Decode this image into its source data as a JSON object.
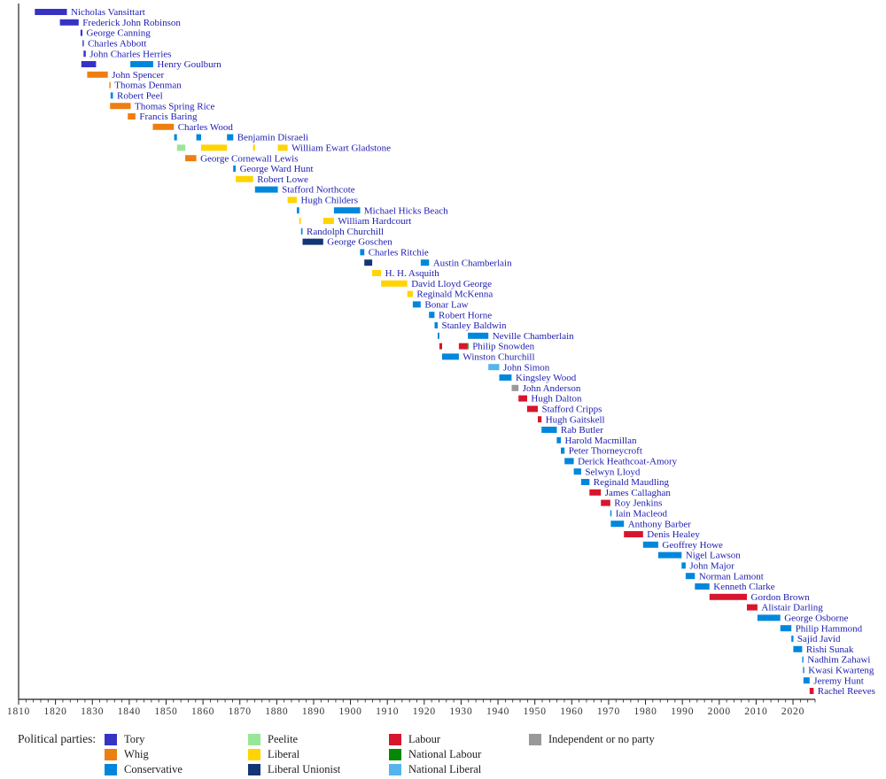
{
  "chart_data": {
    "type": "bar",
    "variant": "gantt-timeline",
    "title": "",
    "xlabel": "",
    "ylabel": "",
    "grid": false,
    "x_axis": {
      "min": 1810,
      "max": 2026,
      "major_tick_interval": 10,
      "minor_tick_interval": 2,
      "tick_labels": [
        "1810",
        "1820",
        "1830",
        "1840",
        "1850",
        "1860",
        "1870",
        "1880",
        "1890",
        "1900",
        "1910",
        "1920",
        "1930",
        "1940",
        "1950",
        "1960",
        "1970",
        "1980",
        "1990",
        "2000",
        "2010",
        "2020"
      ]
    },
    "label_color": "#1c1cb0",
    "axis_color": "#222222",
    "tick_label_color": "#333333",
    "parties": {
      "Tory": "#3732C4",
      "Whig": "#EE7E11",
      "Conservative": "#0087DC",
      "Peelite": "#98E698",
      "Liberal": "#FFD400",
      "Liberal Unionist": "#133577",
      "Labour": "#D8152F",
      "National Labour": "#058805",
      "National Liberal": "#55B4EE",
      "Independent or no party": "#999999"
    },
    "legend": {
      "title": "Political parties:",
      "position": "bottom",
      "items": [
        {
          "label": "Tory",
          "color": "#3732C4"
        },
        {
          "label": "Whig",
          "color": "#EE7E11"
        },
        {
          "label": "Conservative",
          "color": "#0087DC"
        },
        {
          "label": "Peelite",
          "color": "#98E698"
        },
        {
          "label": "Liberal",
          "color": "#FFD400"
        },
        {
          "label": "Liberal Unionist",
          "color": "#133577"
        },
        {
          "label": "Labour",
          "color": "#D8152F"
        },
        {
          "label": "National Labour",
          "color": "#058805"
        },
        {
          "label": "National Liberal",
          "color": "#55B4EE"
        },
        {
          "label": "Independent or no party",
          "color": "#999999"
        }
      ]
    },
    "rows": [
      {
        "name": "Nicholas Vansittart",
        "terms": [
          {
            "party": "Tory",
            "start": 1814.4,
            "end": 1823.1
          }
        ]
      },
      {
        "name": "Frederick John Robinson",
        "terms": [
          {
            "party": "Tory",
            "start": 1821.2,
            "end": 1826.3
          }
        ]
      },
      {
        "name": "George Canning",
        "terms": [
          {
            "party": "Tory",
            "start": 1826.8,
            "end": 1827.3
          }
        ]
      },
      {
        "name": "Charles Abbott",
        "terms": [
          {
            "party": "Tory",
            "start": 1827.35,
            "end": 1827.5
          }
        ]
      },
      {
        "name": "John Charles Herries",
        "terms": [
          {
            "party": "Tory",
            "start": 1827.6,
            "end": 1828.2
          }
        ]
      },
      {
        "name": "Henry Goulburn",
        "terms": [
          {
            "party": "Tory",
            "start": 1827.0,
            "end": 1831.0
          },
          {
            "party": "Conservative",
            "start": 1840.3,
            "end": 1846.5
          }
        ]
      },
      {
        "name": "John Spencer",
        "terms": [
          {
            "party": "Whig",
            "start": 1828.6,
            "end": 1834.2
          }
        ]
      },
      {
        "name": "Thomas Denman",
        "terms": [
          {
            "party": "Whig",
            "start": 1834.6,
            "end": 1834.85
          }
        ]
      },
      {
        "name": "Robert Peel",
        "terms": [
          {
            "party": "Conservative",
            "start": 1834.95,
            "end": 1835.6
          }
        ]
      },
      {
        "name": "Thomas Spring Rice",
        "terms": [
          {
            "party": "Whig",
            "start": 1834.8,
            "end": 1840.4
          }
        ]
      },
      {
        "name": "Francis Baring",
        "terms": [
          {
            "party": "Whig",
            "start": 1839.6,
            "end": 1841.7
          }
        ]
      },
      {
        "name": "Charles Wood",
        "terms": [
          {
            "party": "Whig",
            "start": 1846.4,
            "end": 1852.1
          }
        ]
      },
      {
        "name": "Benjamin Disraeli",
        "terms": [
          {
            "party": "Conservative",
            "start": 1852.2,
            "end": 1852.95
          },
          {
            "party": "Conservative",
            "start": 1858.2,
            "end": 1859.5
          },
          {
            "party": "Conservative",
            "start": 1866.5,
            "end": 1868.2
          }
        ]
      },
      {
        "name": "William Ewart Gladstone",
        "terms": [
          {
            "party": "Peelite",
            "start": 1852.95,
            "end": 1855.2
          },
          {
            "party": "Liberal",
            "start": 1859.5,
            "end": 1866.5
          },
          {
            "party": "Liberal",
            "start": 1873.6,
            "end": 1874.1
          },
          {
            "party": "Liberal",
            "start": 1880.3,
            "end": 1882.95
          }
        ]
      },
      {
        "name": "George Cornewall Lewis",
        "terms": [
          {
            "party": "Whig",
            "start": 1855.2,
            "end": 1858.2
          }
        ]
      },
      {
        "name": "George Ward Hunt",
        "terms": [
          {
            "party": "Conservative",
            "start": 1868.2,
            "end": 1868.9
          }
        ]
      },
      {
        "name": "Robert Lowe",
        "terms": [
          {
            "party": "Liberal",
            "start": 1868.9,
            "end": 1873.6
          }
        ]
      },
      {
        "name": "Stafford Northcote",
        "terms": [
          {
            "party": "Conservative",
            "start": 1874.1,
            "end": 1880.3
          }
        ]
      },
      {
        "name": "Hugh Childers",
        "terms": [
          {
            "party": "Liberal",
            "start": 1882.95,
            "end": 1885.45
          }
        ]
      },
      {
        "name": "Michael Hicks Beach",
        "terms": [
          {
            "party": "Conservative",
            "start": 1885.45,
            "end": 1886.1
          },
          {
            "party": "Conservative",
            "start": 1895.5,
            "end": 1902.6
          }
        ]
      },
      {
        "name": "William Hardcourt",
        "terms": [
          {
            "party": "Liberal",
            "start": 1886.1,
            "end": 1886.55
          },
          {
            "party": "Liberal",
            "start": 1892.6,
            "end": 1895.5
          }
        ]
      },
      {
        "name": "Randolph Churchill",
        "terms": [
          {
            "party": "Conservative",
            "start": 1886.6,
            "end": 1887.0
          }
        ]
      },
      {
        "name": "George Goschen",
        "terms": [
          {
            "party": "Liberal Unionist",
            "start": 1887.0,
            "end": 1892.6
          }
        ]
      },
      {
        "name": "Charles Ritchie",
        "terms": [
          {
            "party": "Conservative",
            "start": 1902.6,
            "end": 1903.75
          }
        ]
      },
      {
        "name": "Austin Chamberlain",
        "terms": [
          {
            "party": "Liberal Unionist",
            "start": 1903.75,
            "end": 1905.9
          },
          {
            "party": "Conservative",
            "start": 1919.05,
            "end": 1921.3
          }
        ]
      },
      {
        "name": "H. H. Asquith",
        "terms": [
          {
            "party": "Liberal",
            "start": 1905.9,
            "end": 1908.3
          }
        ]
      },
      {
        "name": "David Lloyd George",
        "terms": [
          {
            "party": "Liberal",
            "start": 1908.3,
            "end": 1915.4
          }
        ]
      },
      {
        "name": "Reginald McKenna",
        "terms": [
          {
            "party": "Liberal",
            "start": 1915.4,
            "end": 1916.9
          }
        ]
      },
      {
        "name": "Bonar Law",
        "terms": [
          {
            "party": "Conservative",
            "start": 1916.9,
            "end": 1919.05
          }
        ]
      },
      {
        "name": "Robert Horne",
        "terms": [
          {
            "party": "Conservative",
            "start": 1921.3,
            "end": 1922.8
          }
        ]
      },
      {
        "name": "Stanley Baldwin",
        "terms": [
          {
            "party": "Conservative",
            "start": 1922.8,
            "end": 1923.65
          }
        ]
      },
      {
        "name": "Neville Chamberlain",
        "terms": [
          {
            "party": "Conservative",
            "start": 1923.65,
            "end": 1924.1
          },
          {
            "party": "Conservative",
            "start": 1931.85,
            "end": 1937.4
          }
        ]
      },
      {
        "name": "Philip Snowden",
        "terms": [
          {
            "party": "Labour",
            "start": 1924.1,
            "end": 1924.85
          },
          {
            "party": "Labour",
            "start": 1929.4,
            "end": 1931.65
          },
          {
            "party": "National Labour",
            "start": 1931.65,
            "end": 1931.85
          }
        ]
      },
      {
        "name": "Winston Churchill",
        "terms": [
          {
            "party": "Conservative",
            "start": 1924.85,
            "end": 1929.4
          }
        ]
      },
      {
        "name": "John Simon",
        "terms": [
          {
            "party": "National Liberal",
            "start": 1937.4,
            "end": 1940.35
          }
        ]
      },
      {
        "name": "Kingsley Wood",
        "terms": [
          {
            "party": "Conservative",
            "start": 1940.35,
            "end": 1943.7
          }
        ]
      },
      {
        "name": "John Anderson",
        "terms": [
          {
            "party": "Independent or no party",
            "start": 1943.7,
            "end": 1945.55
          }
        ]
      },
      {
        "name": "Hugh Dalton",
        "terms": [
          {
            "party": "Labour",
            "start": 1945.55,
            "end": 1947.9
          }
        ]
      },
      {
        "name": "Stafford Cripps",
        "terms": [
          {
            "party": "Labour",
            "start": 1947.9,
            "end": 1950.8
          }
        ]
      },
      {
        "name": "Hugh Gaitskell",
        "terms": [
          {
            "party": "Labour",
            "start": 1950.8,
            "end": 1951.8
          }
        ]
      },
      {
        "name": "Rab Butler",
        "terms": [
          {
            "party": "Conservative",
            "start": 1951.8,
            "end": 1955.95
          }
        ]
      },
      {
        "name": "Harold Macmillan",
        "terms": [
          {
            "party": "Conservative",
            "start": 1955.95,
            "end": 1957.05
          }
        ]
      },
      {
        "name": "Peter Thorneycroft",
        "terms": [
          {
            "party": "Conservative",
            "start": 1957.05,
            "end": 1958.05
          }
        ]
      },
      {
        "name": "Derick Heathcoat-Amory",
        "terms": [
          {
            "party": "Conservative",
            "start": 1958.05,
            "end": 1960.55
          }
        ]
      },
      {
        "name": "Selwyn Lloyd",
        "terms": [
          {
            "party": "Conservative",
            "start": 1960.55,
            "end": 1962.55
          }
        ]
      },
      {
        "name": "Reginald Maudling",
        "terms": [
          {
            "party": "Conservative",
            "start": 1962.55,
            "end": 1964.8
          }
        ]
      },
      {
        "name": "James Callaghan",
        "terms": [
          {
            "party": "Labour",
            "start": 1964.8,
            "end": 1967.9
          }
        ]
      },
      {
        "name": "Roy Jenkins",
        "terms": [
          {
            "party": "Labour",
            "start": 1967.9,
            "end": 1970.45
          }
        ]
      },
      {
        "name": "Iain Macleod",
        "terms": [
          {
            "party": "Conservative",
            "start": 1970.45,
            "end": 1970.6
          }
        ]
      },
      {
        "name": "Anthony Barber",
        "terms": [
          {
            "party": "Conservative",
            "start": 1970.6,
            "end": 1974.15
          }
        ]
      },
      {
        "name": "Denis Healey",
        "terms": [
          {
            "party": "Labour",
            "start": 1974.15,
            "end": 1979.35
          }
        ]
      },
      {
        "name": "Geoffrey Howe",
        "terms": [
          {
            "party": "Conservative",
            "start": 1979.35,
            "end": 1983.45
          }
        ]
      },
      {
        "name": "Nigel Lawson",
        "terms": [
          {
            "party": "Conservative",
            "start": 1983.45,
            "end": 1989.8
          }
        ]
      },
      {
        "name": "John Major",
        "terms": [
          {
            "party": "Conservative",
            "start": 1989.8,
            "end": 1990.9
          }
        ]
      },
      {
        "name": "Norman Lamont",
        "terms": [
          {
            "party": "Conservative",
            "start": 1990.9,
            "end": 1993.4
          }
        ]
      },
      {
        "name": "Kenneth Clarke",
        "terms": [
          {
            "party": "Conservative",
            "start": 1993.4,
            "end": 1997.35
          }
        ]
      },
      {
        "name": "Gordon Brown",
        "terms": [
          {
            "party": "Labour",
            "start": 1997.35,
            "end": 2007.5
          }
        ]
      },
      {
        "name": "Alistair Darling",
        "terms": [
          {
            "party": "Labour",
            "start": 2007.5,
            "end": 2010.35
          }
        ]
      },
      {
        "name": "George Osborne",
        "terms": [
          {
            "party": "Conservative",
            "start": 2010.35,
            "end": 2016.55
          }
        ]
      },
      {
        "name": "Philip Hammond",
        "terms": [
          {
            "party": "Conservative",
            "start": 2016.55,
            "end": 2019.55
          }
        ]
      },
      {
        "name": "Sajid Javid",
        "terms": [
          {
            "party": "Conservative",
            "start": 2019.55,
            "end": 2020.1
          }
        ]
      },
      {
        "name": "Rishi Sunak",
        "terms": [
          {
            "party": "Conservative",
            "start": 2020.1,
            "end": 2022.5
          }
        ]
      },
      {
        "name": "Nadhim Zahawi",
        "terms": [
          {
            "party": "Conservative",
            "start": 2022.5,
            "end": 2022.7
          }
        ]
      },
      {
        "name": "Kwasi Kwarteng",
        "terms": [
          {
            "party": "Conservative",
            "start": 2022.7,
            "end": 2022.82
          }
        ]
      },
      {
        "name": "Jeremy Hunt",
        "terms": [
          {
            "party": "Conservative",
            "start": 2022.82,
            "end": 2024.5
          }
        ]
      },
      {
        "name": "Rachel Reeves",
        "terms": [
          {
            "party": "Labour",
            "start": 2024.5,
            "end": 2025.6
          }
        ]
      }
    ]
  }
}
